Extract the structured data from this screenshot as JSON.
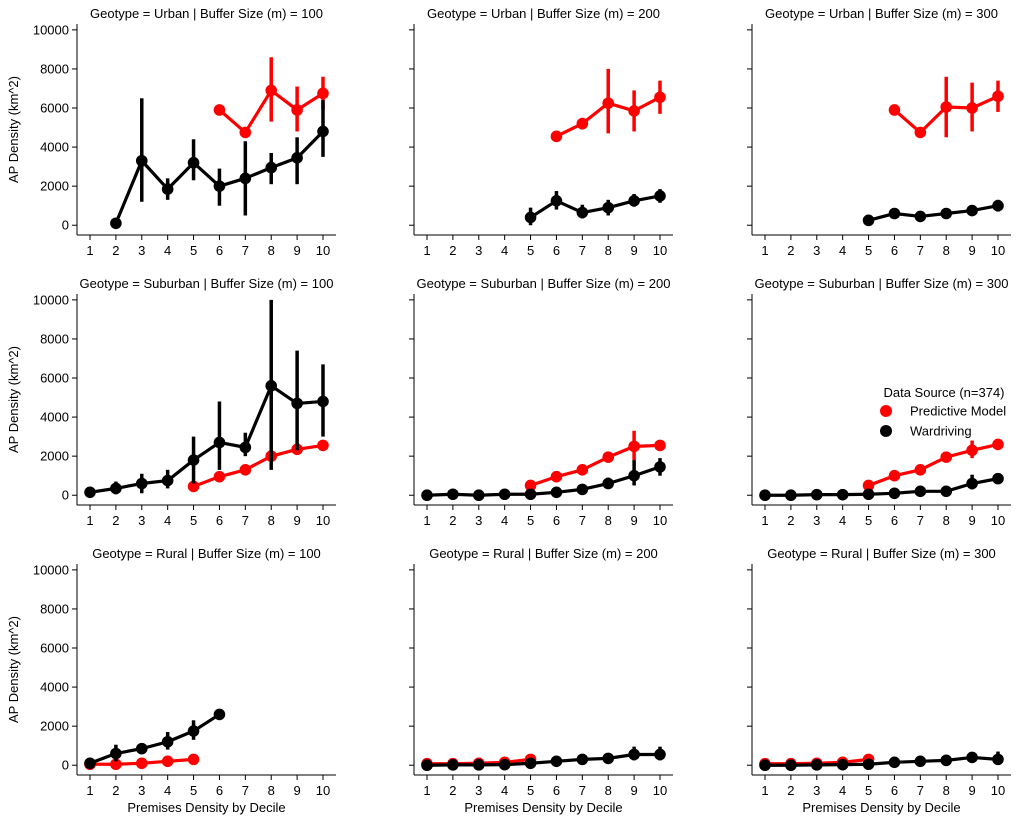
{
  "chart_data": {
    "type": "line",
    "ylabel": "AP Density (km^2)",
    "xlabel": "Premises Density by Decile",
    "categories": [
      "1",
      "2",
      "3",
      "4",
      "5",
      "6",
      "7",
      "8",
      "9",
      "10"
    ],
    "yticks": [
      "0",
      "2000",
      "4000",
      "6000",
      "8000",
      "10000"
    ],
    "ylim": [
      -500,
      10300
    ],
    "legend": {
      "title": "Data Source (n=374)",
      "placement": "right, middle row",
      "entries": [
        {
          "label": "Predictive Model",
          "color": "#ff0000"
        },
        {
          "label": "Wardriving",
          "color": "#000000"
        }
      ]
    },
    "panels": [
      {
        "title": "Geotype = Urban | Buffer Size (m) = 100",
        "series": [
          {
            "name": "Predictive Model",
            "color": "#ff0000",
            "points": [
              [
                6,
                5900,
                5900,
                5900
              ],
              [
                7,
                4750,
                4750,
                4750
              ],
              [
                8,
                6900,
                5300,
                8600
              ],
              [
                9,
                5900,
                4800,
                7100
              ],
              [
                10,
                6750,
                5900,
                7600
              ]
            ]
          },
          {
            "name": "Wardriving",
            "color": "#000000",
            "points": [
              [
                2,
                100,
                0,
                200
              ],
              [
                3,
                3300,
                1200,
                6500
              ],
              [
                4,
                1850,
                1300,
                2400
              ],
              [
                5,
                3200,
                2300,
                4400
              ],
              [
                6,
                2000,
                1000,
                2900
              ],
              [
                7,
                2400,
                500,
                4300
              ],
              [
                8,
                2950,
                2100,
                3700
              ],
              [
                9,
                3450,
                2100,
                4500
              ],
              [
                10,
                4800,
                3500,
                6400
              ]
            ]
          }
        ]
      },
      {
        "title": "Geotype = Urban | Buffer Size (m) = 200",
        "series": [
          {
            "name": "Predictive Model",
            "color": "#ff0000",
            "points": [
              [
                6,
                4550,
                4550,
                4550
              ],
              [
                7,
                5200,
                4900,
                5500
              ],
              [
                8,
                6250,
                4700,
                8000
              ],
              [
                9,
                5850,
                4800,
                6900
              ],
              [
                10,
                6550,
                5700,
                7400
              ]
            ]
          },
          {
            "name": "Wardriving",
            "color": "#000000",
            "points": [
              [
                5,
                400,
                0,
                900
              ],
              [
                6,
                1250,
                800,
                1750
              ],
              [
                7,
                650,
                350,
                1050
              ],
              [
                8,
                900,
                500,
                1300
              ],
              [
                9,
                1250,
                950,
                1600
              ],
              [
                10,
                1500,
                1150,
                1850
              ]
            ]
          }
        ]
      },
      {
        "title": "Geotype = Urban | Buffer Size (m) = 300",
        "series": [
          {
            "name": "Predictive Model",
            "color": "#ff0000",
            "points": [
              [
                6,
                5900,
                5900,
                5900
              ],
              [
                7,
                4750,
                4600,
                4900
              ],
              [
                8,
                6050,
                4500,
                7600
              ],
              [
                9,
                6000,
                4800,
                7300
              ],
              [
                10,
                6600,
                5800,
                7400
              ]
            ]
          },
          {
            "name": "Wardriving",
            "color": "#000000",
            "points": [
              [
                5,
                250,
                250,
                250
              ],
              [
                6,
                600,
                450,
                750
              ],
              [
                7,
                450,
                200,
                700
              ],
              [
                8,
                600,
                450,
                750
              ],
              [
                9,
                750,
                600,
                900
              ],
              [
                10,
                1000,
                700,
                1300
              ]
            ]
          }
        ]
      },
      {
        "title": "Geotype = Suburban | Buffer Size (m) = 100",
        "series": [
          {
            "name": "Predictive Model",
            "color": "#ff0000",
            "points": [
              [
                5,
                450,
                450,
                450
              ],
              [
                6,
                950,
                800,
                1100
              ],
              [
                7,
                1300,
                1150,
                1450
              ],
              [
                8,
                2000,
                1850,
                2150
              ],
              [
                9,
                2350,
                2100,
                2600
              ],
              [
                10,
                2550,
                2400,
                2700
              ]
            ]
          },
          {
            "name": "Wardriving",
            "color": "#000000",
            "points": [
              [
                1,
                150,
                0,
                350
              ],
              [
                2,
                350,
                50,
                700
              ],
              [
                3,
                600,
                100,
                1100
              ],
              [
                4,
                750,
                350,
                1300
              ],
              [
                5,
                1800,
                600,
                3000
              ],
              [
                6,
                2700,
                1300,
                4800
              ],
              [
                7,
                2450,
                2000,
                3200
              ],
              [
                8,
                5600,
                1300,
                10000
              ],
              [
                9,
                4700,
                2300,
                7400
              ],
              [
                10,
                4800,
                3000,
                6700
              ]
            ]
          }
        ]
      },
      {
        "title": "Geotype = Suburban | Buffer Size (m) = 200",
        "series": [
          {
            "name": "Predictive Model",
            "color": "#ff0000",
            "points": [
              [
                5,
                500,
                400,
                600
              ],
              [
                6,
                950,
                700,
                1200
              ],
              [
                7,
                1300,
                1100,
                1500
              ],
              [
                8,
                1950,
                1700,
                2200
              ],
              [
                9,
                2500,
                1800,
                3300
              ],
              [
                10,
                2550,
                2300,
                2800
              ]
            ]
          },
          {
            "name": "Wardriving",
            "color": "#000000",
            "points": [
              [
                1,
                0,
                0,
                50
              ],
              [
                2,
                50,
                0,
                150
              ],
              [
                3,
                0,
                0,
                100
              ],
              [
                4,
                50,
                0,
                100
              ],
              [
                5,
                50,
                0,
                150
              ],
              [
                6,
                150,
                50,
                300
              ],
              [
                7,
                300,
                100,
                550
              ],
              [
                8,
                600,
                350,
                900
              ],
              [
                9,
                1000,
                500,
                1800
              ],
              [
                10,
                1450,
                1000,
                1900
              ]
            ]
          }
        ]
      },
      {
        "title": "Geotype = Suburban | Buffer Size (m) = 300",
        "series": [
          {
            "name": "Predictive Model",
            "color": "#ff0000",
            "points": [
              [
                5,
                500,
                400,
                600
              ],
              [
                6,
                1000,
                800,
                1200
              ],
              [
                7,
                1300,
                1150,
                1450
              ],
              [
                8,
                1950,
                1750,
                2150
              ],
              [
                9,
                2300,
                1900,
                2800
              ],
              [
                10,
                2600,
                2400,
                2800
              ]
            ]
          },
          {
            "name": "Wardriving",
            "color": "#000000",
            "points": [
              [
                1,
                0,
                0,
                50
              ],
              [
                2,
                0,
                0,
                50
              ],
              [
                3,
                30,
                0,
                80
              ],
              [
                4,
                30,
                0,
                80
              ],
              [
                5,
                50,
                0,
                100
              ],
              [
                6,
                100,
                30,
                200
              ],
              [
                7,
                200,
                100,
                350
              ],
              [
                8,
                200,
                100,
                300
              ],
              [
                9,
                600,
                300,
                1050
              ],
              [
                10,
                850,
                700,
                1000
              ]
            ]
          }
        ]
      },
      {
        "title": "Geotype = Rural | Buffer Size (m) = 100",
        "series": [
          {
            "name": "Predictive Model",
            "color": "#ff0000",
            "points": [
              [
                1,
                50,
                0,
                100
              ],
              [
                2,
                50,
                0,
                100
              ],
              [
                3,
                100,
                50,
                150
              ],
              [
                4,
                200,
                150,
                250
              ],
              [
                5,
                300,
                250,
                350
              ]
            ]
          },
          {
            "name": "Wardriving",
            "color": "#000000",
            "points": [
              [
                1,
                100,
                0,
                300
              ],
              [
                2,
                600,
                200,
                1050
              ],
              [
                3,
                850,
                600,
                1100
              ],
              [
                4,
                1200,
                800,
                1700
              ],
              [
                5,
                1750,
                1300,
                2300
              ],
              [
                6,
                2600,
                2600,
                2600
              ]
            ]
          }
        ]
      },
      {
        "title": "Geotype = Rural | Buffer Size (m) = 200",
        "series": [
          {
            "name": "Predictive Model",
            "color": "#ff0000",
            "points": [
              [
                1,
                80,
                30,
                130
              ],
              [
                2,
                80,
                30,
                130
              ],
              [
                3,
                100,
                50,
                150
              ],
              [
                4,
                150,
                100,
                200
              ],
              [
                5,
                300,
                250,
                350
              ]
            ]
          },
          {
            "name": "Wardriving",
            "color": "#000000",
            "points": [
              [
                1,
                0,
                0,
                50
              ],
              [
                2,
                20,
                0,
                80
              ],
              [
                3,
                20,
                0,
                80
              ],
              [
                4,
                30,
                0,
                100
              ],
              [
                5,
                100,
                0,
                200
              ],
              [
                6,
                200,
                100,
                300
              ],
              [
                7,
                300,
                250,
                350
              ],
              [
                8,
                350,
                250,
                450
              ],
              [
                9,
                550,
                250,
                950
              ],
              [
                10,
                550,
                250,
                950
              ]
            ]
          }
        ]
      },
      {
        "title": "Geotype = Rural | Buffer Size (m) = 300",
        "series": [
          {
            "name": "Predictive Model",
            "color": "#ff0000",
            "points": [
              [
                1,
                80,
                30,
                130
              ],
              [
                2,
                80,
                30,
                130
              ],
              [
                3,
                100,
                50,
                150
              ],
              [
                4,
                150,
                100,
                200
              ],
              [
                5,
                300,
                250,
                350
              ]
            ]
          },
          {
            "name": "Wardriving",
            "color": "#000000",
            "points": [
              [
                1,
                0,
                0,
                50
              ],
              [
                2,
                0,
                0,
                50
              ],
              [
                3,
                20,
                0,
                80
              ],
              [
                4,
                30,
                0,
                100
              ],
              [
                5,
                50,
                0,
                150
              ],
              [
                6,
                150,
                100,
                250
              ],
              [
                7,
                200,
                150,
                300
              ],
              [
                8,
                250,
                150,
                350
              ],
              [
                9,
                400,
                300,
                550
              ],
              [
                10,
                300,
                100,
                700
              ]
            ]
          }
        ]
      }
    ]
  }
}
